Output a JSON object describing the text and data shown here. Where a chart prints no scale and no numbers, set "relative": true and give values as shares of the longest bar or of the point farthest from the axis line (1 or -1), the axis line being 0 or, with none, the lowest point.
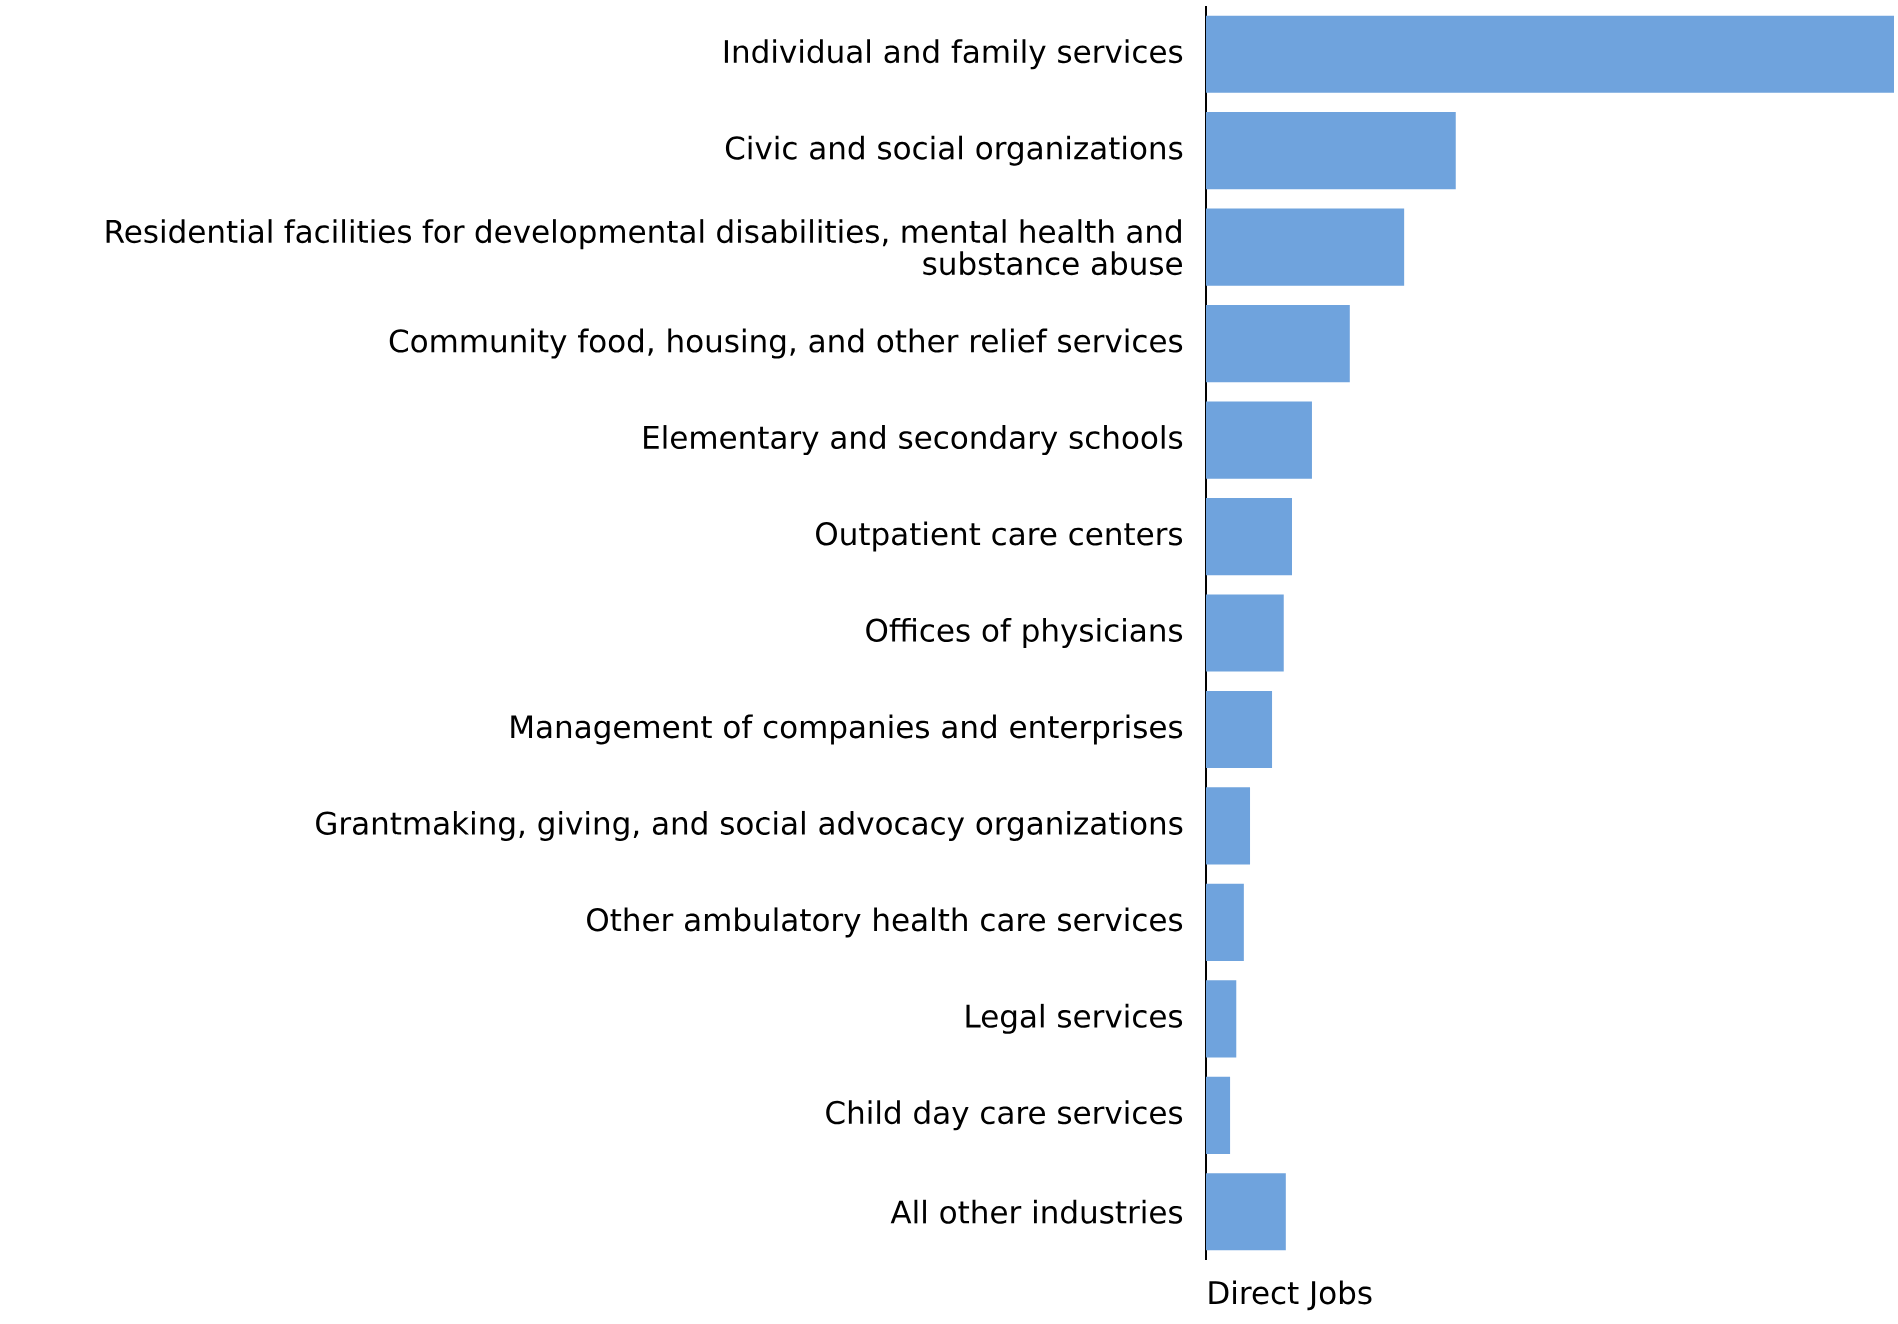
{
  "chart_data": {
    "type": "bar",
    "orientation": "horizontal",
    "relative": true,
    "xlabel": "Direct Jobs",
    "color": "#6fa3dd",
    "categories": [
      "Individual and family services",
      "Civic and social organizations",
      "Residential facilities for developmental disabilities, mental health and substance abuse",
      "Community food, housing, and other relief services",
      "Elementary and secondary schools",
      "Outpatient care centers",
      "Offices of physicians",
      "Management of companies and enterprises",
      "Grantmaking, giving, and social advocacy organizations",
      "Other ambulatory health care services",
      "Legal services",
      "Child day care services",
      "All other industries"
    ],
    "values": [
      1,
      0.363,
      0.288,
      0.209,
      0.154,
      0.125,
      0.113,
      0.096,
      0.064,
      0.055,
      0.044,
      0.035,
      0.116
    ]
  }
}
